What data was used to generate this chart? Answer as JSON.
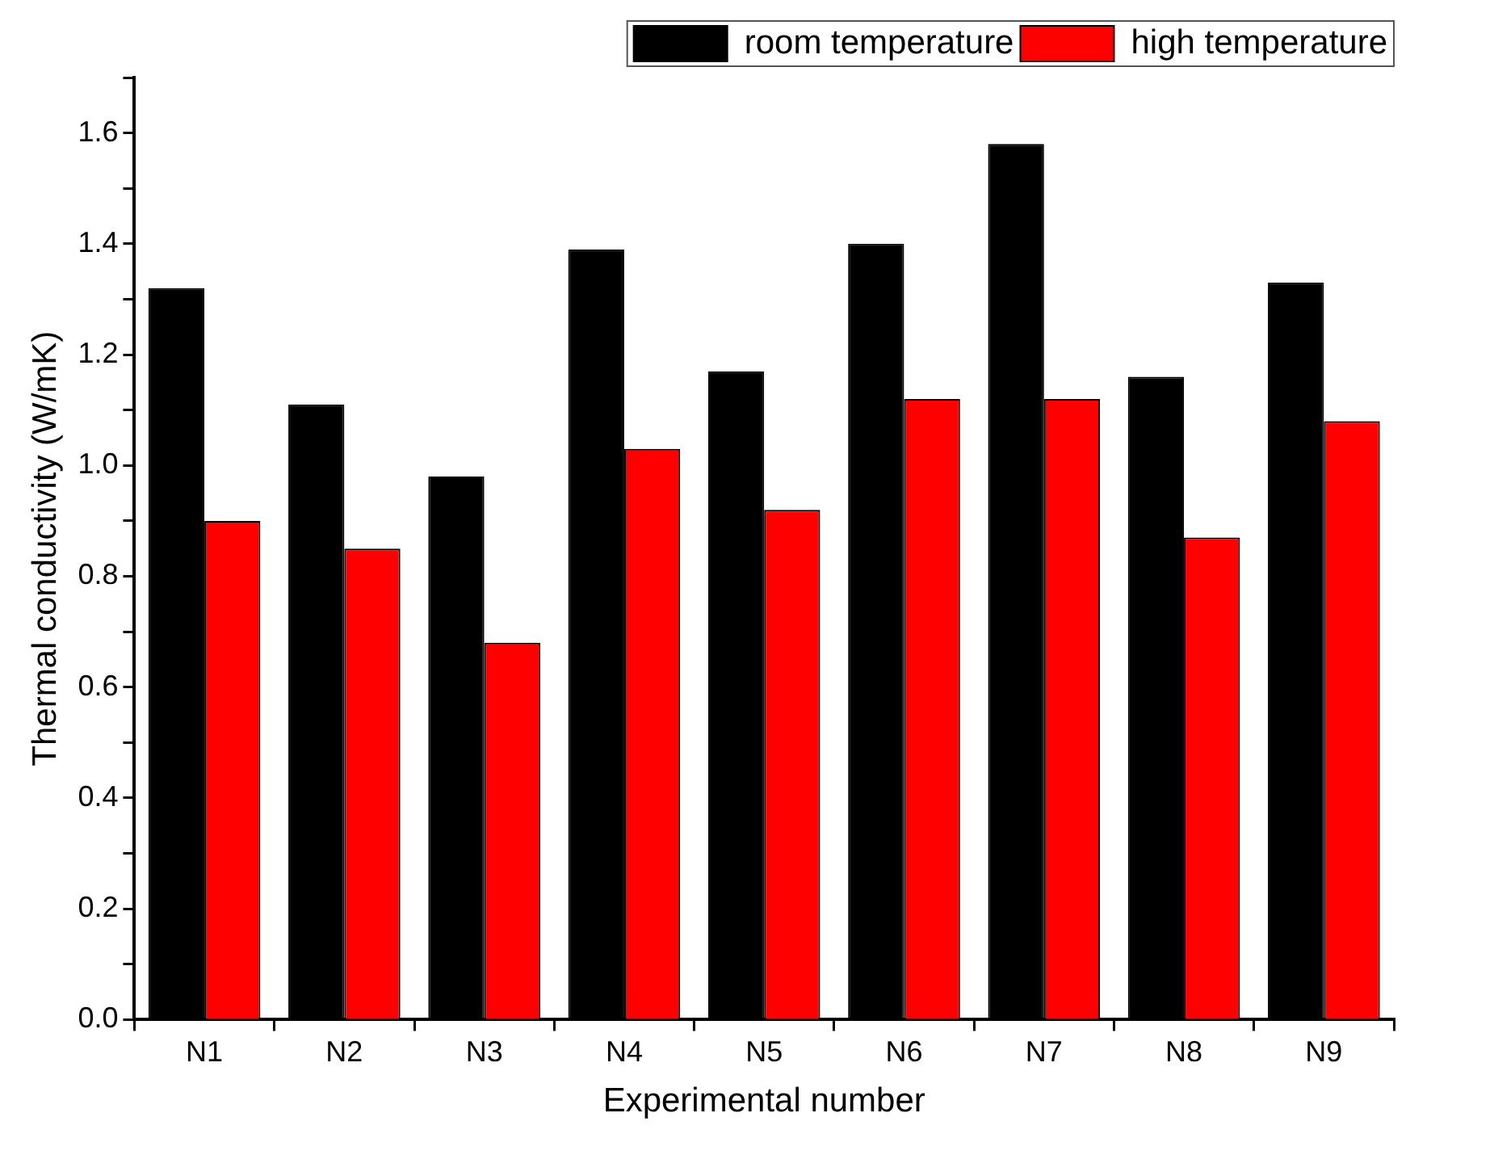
{
  "chart_data": {
    "type": "bar",
    "xlabel": "Experimental number",
    "ylabel": "Thermal conductivity (W/mK)",
    "categories": [
      "N1",
      "N2",
      "N3",
      "N4",
      "N5",
      "N6",
      "N7",
      "N8",
      "N9"
    ],
    "series": [
      {
        "name": "room temperature",
        "color": "#000000",
        "values": [
          1.32,
          1.11,
          0.98,
          1.39,
          1.17,
          1.4,
          1.58,
          1.16,
          1.33
        ]
      },
      {
        "name": "high temperature",
        "color": "#ff0000",
        "values": [
          0.9,
          0.85,
          0.68,
          1.03,
          0.92,
          1.12,
          1.12,
          0.87,
          1.08
        ]
      }
    ],
    "ylim": [
      0,
      1.7
    ],
    "yticks": [
      {
        "value": 0,
        "label": "0.0"
      },
      {
        "value": 0.1,
        "label": null
      },
      {
        "value": 0.2,
        "label": "0.2"
      },
      {
        "value": 0.3,
        "label": null
      },
      {
        "value": 0.4,
        "label": "0.4"
      },
      {
        "value": 0.5,
        "label": null
      },
      {
        "value": 0.6,
        "label": "0.6"
      },
      {
        "value": 0.7,
        "label": null
      },
      {
        "value": 0.8,
        "label": "0.8"
      },
      {
        "value": 0.9,
        "label": null
      },
      {
        "value": 1.0,
        "label": "1.0"
      },
      {
        "value": 1.1,
        "label": null
      },
      {
        "value": 1.2,
        "label": "1.2"
      },
      {
        "value": 1.3,
        "label": null
      },
      {
        "value": 1.4,
        "label": "1.4"
      },
      {
        "value": 1.5,
        "label": null
      },
      {
        "value": 1.6,
        "label": "1.6"
      },
      {
        "value": 1.7,
        "label": null
      }
    ],
    "legend": "top right"
  }
}
